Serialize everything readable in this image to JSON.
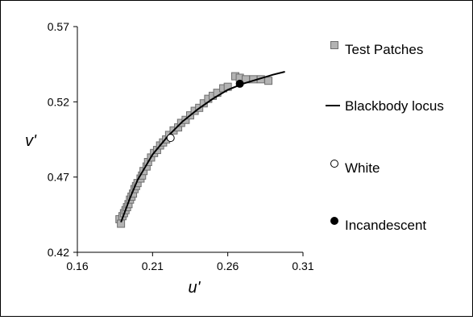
{
  "chart_data": {
    "type": "scatter",
    "xlabel": "u'",
    "ylabel": "v'",
    "xlim": [
      0.16,
      0.31
    ],
    "ylim": [
      0.42,
      0.57
    ],
    "x_ticks": [
      "0.16",
      "0.21",
      "0.26",
      "0.31"
    ],
    "y_ticks": [
      "0.42",
      "0.47",
      "0.52",
      "0.57"
    ],
    "grid": false,
    "legend_position": "right",
    "series": [
      {
        "name": "Test Patches",
        "marker": "square",
        "color": "#b3b3b3",
        "points": [
          [
            0.188,
            0.442
          ],
          [
            0.189,
            0.439
          ],
          [
            0.19,
            0.444
          ],
          [
            0.191,
            0.446
          ],
          [
            0.192,
            0.448
          ],
          [
            0.193,
            0.45
          ],
          [
            0.194,
            0.452
          ],
          [
            0.195,
            0.455
          ],
          [
            0.196,
            0.457
          ],
          [
            0.197,
            0.459
          ],
          [
            0.198,
            0.462
          ],
          [
            0.199,
            0.464
          ],
          [
            0.2,
            0.466
          ],
          [
            0.202,
            0.469
          ],
          [
            0.203,
            0.471
          ],
          [
            0.204,
            0.474
          ],
          [
            0.206,
            0.477
          ],
          [
            0.207,
            0.48
          ],
          [
            0.209,
            0.483
          ],
          [
            0.211,
            0.486
          ],
          [
            0.213,
            0.488
          ],
          [
            0.215,
            0.491
          ],
          [
            0.217,
            0.493
          ],
          [
            0.219,
            0.495
          ],
          [
            0.221,
            0.498
          ],
          [
            0.224,
            0.501
          ],
          [
            0.227,
            0.503
          ],
          [
            0.229,
            0.506
          ],
          [
            0.232,
            0.508
          ],
          [
            0.235,
            0.511
          ],
          [
            0.238,
            0.514
          ],
          [
            0.241,
            0.516
          ],
          [
            0.244,
            0.519
          ],
          [
            0.247,
            0.522
          ],
          [
            0.25,
            0.524
          ],
          [
            0.253,
            0.526
          ],
          [
            0.257,
            0.529
          ],
          [
            0.26,
            0.53
          ],
          [
            0.265,
            0.537
          ],
          [
            0.268,
            0.536
          ],
          [
            0.272,
            0.535
          ],
          [
            0.277,
            0.535
          ],
          [
            0.282,
            0.535
          ],
          [
            0.287,
            0.534
          ]
        ]
      },
      {
        "name": "Blackbody locus",
        "marker": "line",
        "color": "#000000",
        "points": [
          [
            0.189,
            0.44
          ],
          [
            0.195,
            0.456
          ],
          [
            0.2,
            0.468
          ],
          [
            0.21,
            0.485
          ],
          [
            0.22,
            0.497
          ],
          [
            0.23,
            0.507
          ],
          [
            0.24,
            0.515
          ],
          [
            0.25,
            0.522
          ],
          [
            0.26,
            0.528
          ],
          [
            0.27,
            0.532
          ],
          [
            0.28,
            0.535
          ],
          [
            0.29,
            0.538
          ],
          [
            0.298,
            0.54
          ]
        ]
      },
      {
        "name": "White",
        "marker": "open-circle",
        "color": "#ffffff",
        "points": [
          [
            0.222,
            0.496
          ]
        ]
      },
      {
        "name": "Incandescent",
        "marker": "filled-circle",
        "color": "#000000",
        "points": [
          [
            0.268,
            0.532
          ]
        ]
      }
    ]
  }
}
